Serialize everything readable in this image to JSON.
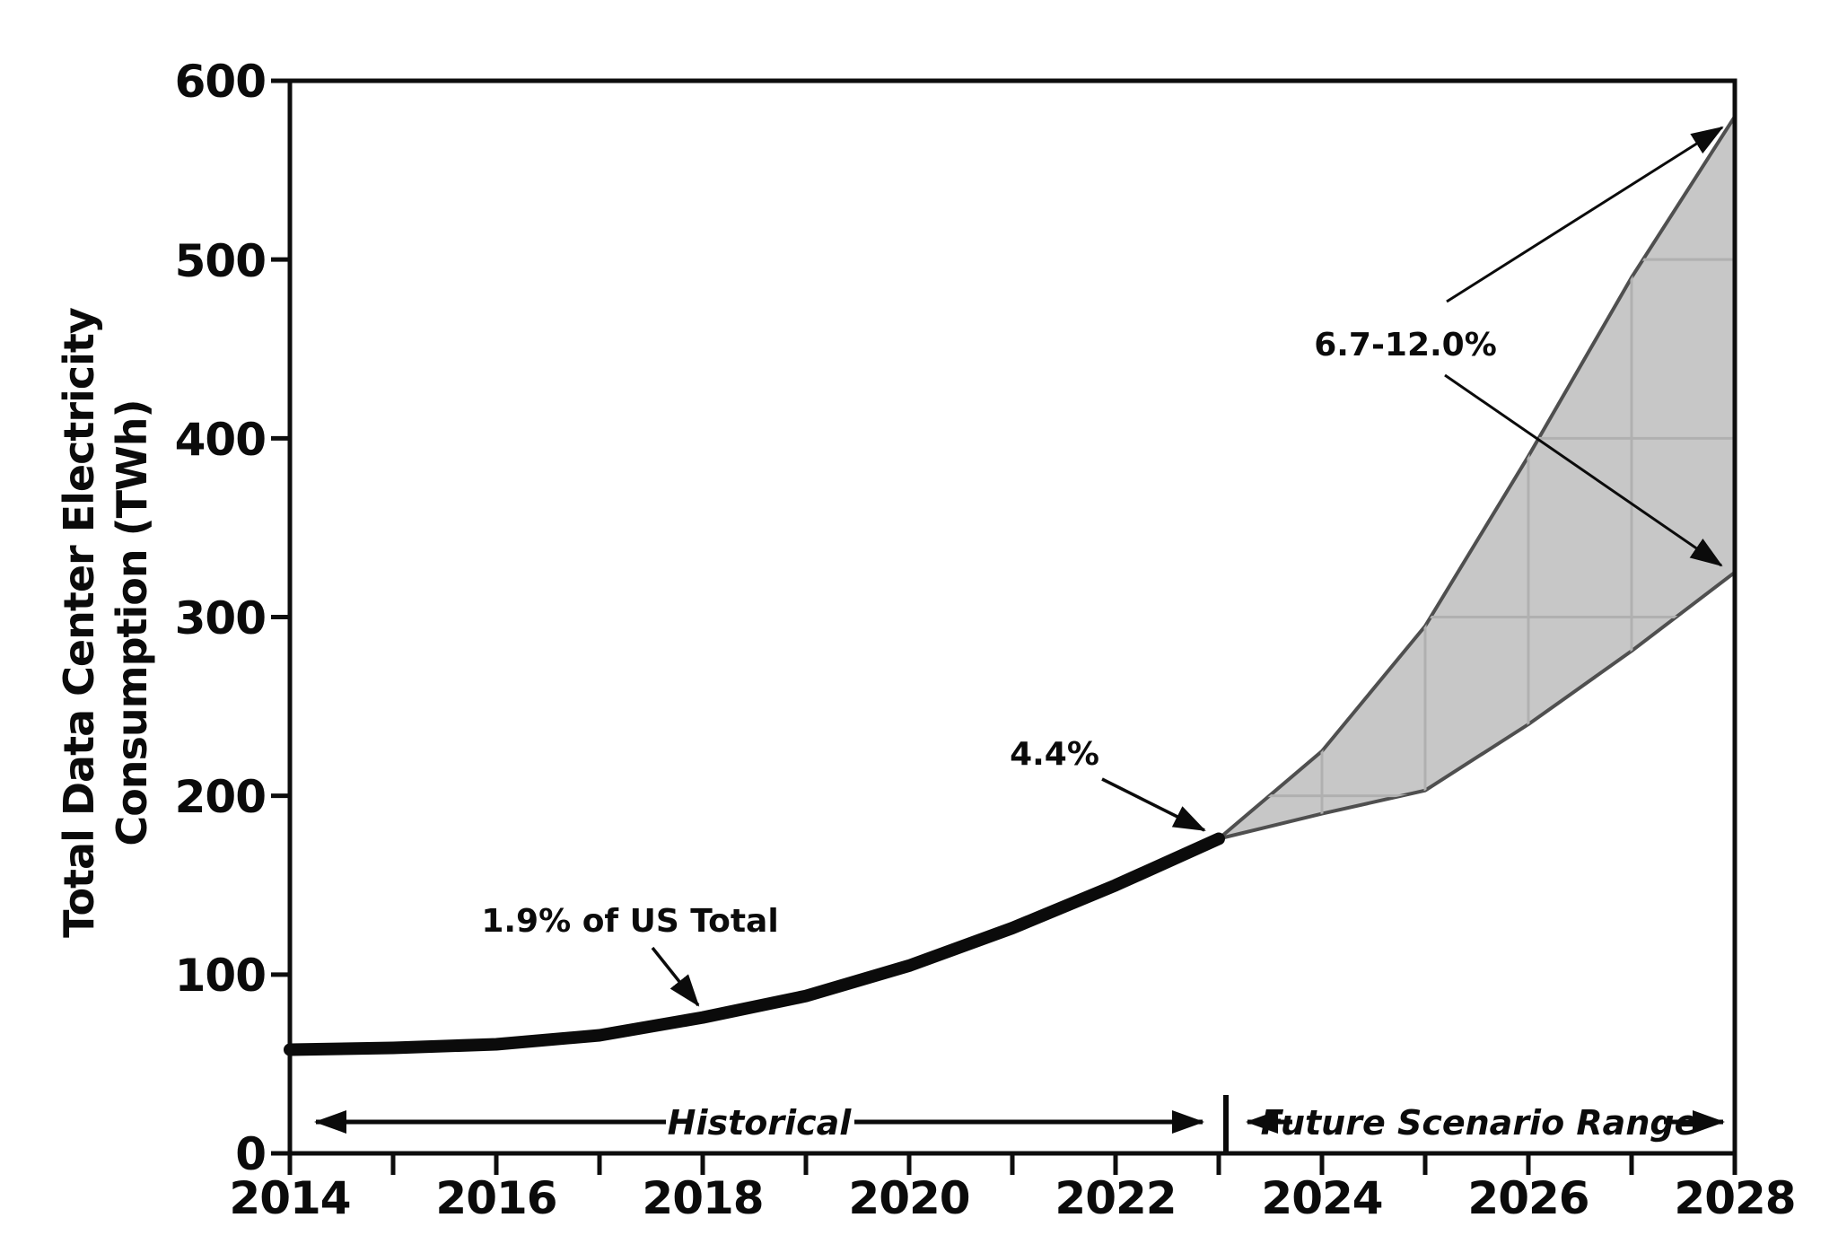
{
  "figure": {
    "y_axis_title_line1": "Total Data Center Electricity",
    "y_axis_title_line2": "Consumption (TWh)",
    "annotations": {
      "hist_2018_label": "1.9% of US Total",
      "hist_2023_label": "4.4%",
      "future_2028_label": "6.7-12.0%",
      "historical_span_label": "Historical",
      "future_span_label": "Future Scenario Range"
    },
    "colors": {
      "line": "#0b0b0b",
      "band_fill": "#c7c7c7",
      "band_edge": "#4f4f4f",
      "grid": "#b0b0b0",
      "background": "#ffffff"
    }
  },
  "chart_data": {
    "type": "area",
    "title": "",
    "xlabel": "",
    "ylabel": "Total Data Center Electricity Consumption (TWh)",
    "xlim": [
      2014,
      2028
    ],
    "ylim": [
      0,
      600
    ],
    "xticks": [
      2014,
      2015,
      2016,
      2017,
      2018,
      2019,
      2020,
      2021,
      2022,
      2023,
      2024,
      2025,
      2026,
      2027,
      2028
    ],
    "xtick_labels": [
      "2014",
      "2016",
      "2018",
      "2020",
      "2022",
      "2024",
      "2026",
      "2028"
    ],
    "yticks": [
      0,
      100,
      200,
      300,
      400,
      500,
      600
    ],
    "ytick_labels": [
      "0",
      "100",
      "200",
      "300",
      "400",
      "500",
      "600"
    ],
    "grid": "light gray gridlines visible only within shaded scenario band",
    "legend_position": "none",
    "series": [
      {
        "name": "Historical",
        "x": [
          2014,
          2015,
          2016,
          2017,
          2018,
          2019,
          2020,
          2021,
          2022,
          2023
        ],
        "values": [
          58,
          59,
          61,
          66,
          76,
          88,
          105,
          126,
          150,
          176
        ]
      },
      {
        "name": "Future scenario high",
        "x": [
          2023,
          2024,
          2025,
          2026,
          2027,
          2028
        ],
        "values": [
          176,
          225,
          295,
          390,
          490,
          580
        ]
      },
      {
        "name": "Future scenario low",
        "x": [
          2023,
          2024,
          2025,
          2026,
          2027,
          2028
        ],
        "values": [
          176,
          190,
          203,
          240,
          281,
          325
        ]
      }
    ],
    "annotations": [
      {
        "text": "1.9% of US Total",
        "points_to": {
          "x": 2018,
          "y": 76
        }
      },
      {
        "text": "4.4%",
        "points_to": {
          "x": 2023,
          "y": 176
        }
      },
      {
        "text": "6.7-12.0%",
        "points_to": {
          "x": 2028,
          "y_low": 325,
          "y_high": 580
        }
      },
      {
        "text": "Historical",
        "span_years": [
          2014,
          2023
        ]
      },
      {
        "text": "Future Scenario Range",
        "span_years": [
          2023,
          2028
        ]
      }
    ]
  }
}
